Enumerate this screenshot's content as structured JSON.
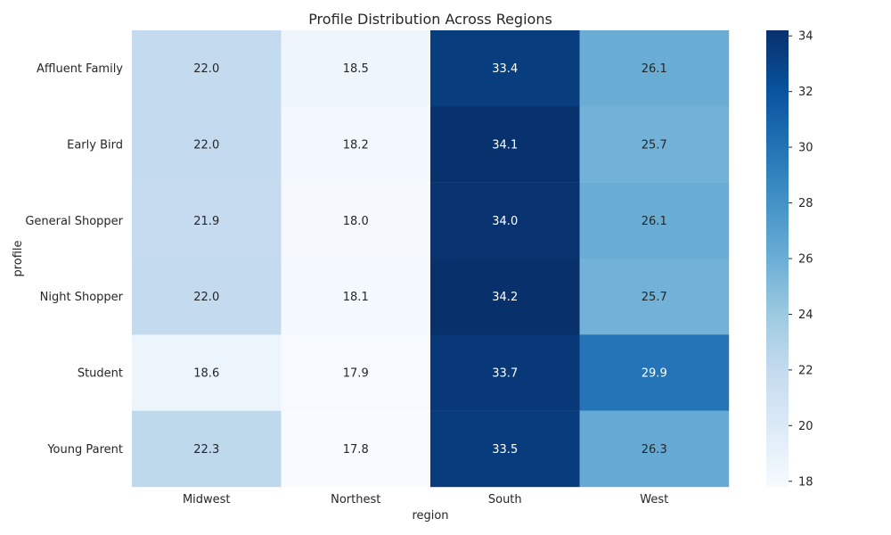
{
  "chart_data": {
    "type": "heatmap",
    "title": "Profile Distribution Across Regions",
    "xlabel": "region",
    "ylabel": "profile",
    "x_categories": [
      "Midwest",
      "Northest",
      "South",
      "West"
    ],
    "y_categories": [
      "Affluent Family",
      "Early Bird",
      "General Shopper",
      "Night Shopper",
      "Student",
      "Young Parent"
    ],
    "values": [
      [
        22.0,
        18.5,
        33.4,
        26.1
      ],
      [
        22.0,
        18.2,
        34.1,
        25.7
      ],
      [
        21.9,
        18.0,
        34.0,
        26.1
      ],
      [
        22.0,
        18.1,
        34.2,
        25.7
      ],
      [
        18.6,
        17.9,
        33.7,
        29.9
      ],
      [
        22.3,
        17.8,
        33.5,
        26.3
      ]
    ],
    "value_labels": [
      [
        "22.0",
        "18.5",
        "33.4",
        "26.1"
      ],
      [
        "22.0",
        "18.2",
        "34.1",
        "25.7"
      ],
      [
        "21.9",
        "18.0",
        "34.0",
        "26.1"
      ],
      [
        "22.0",
        "18.1",
        "34.2",
        "25.7"
      ],
      [
        "18.6",
        "17.9",
        "33.7",
        "29.9"
      ],
      [
        "22.3",
        "17.8",
        "33.5",
        "26.3"
      ]
    ],
    "colorbar": {
      "range": [
        17.8,
        34.2
      ],
      "ticks": [
        18,
        20,
        22,
        24,
        26,
        28,
        30,
        32,
        34
      ],
      "colormap": "Blues"
    },
    "grid": false,
    "legend": "colorbar-right"
  }
}
